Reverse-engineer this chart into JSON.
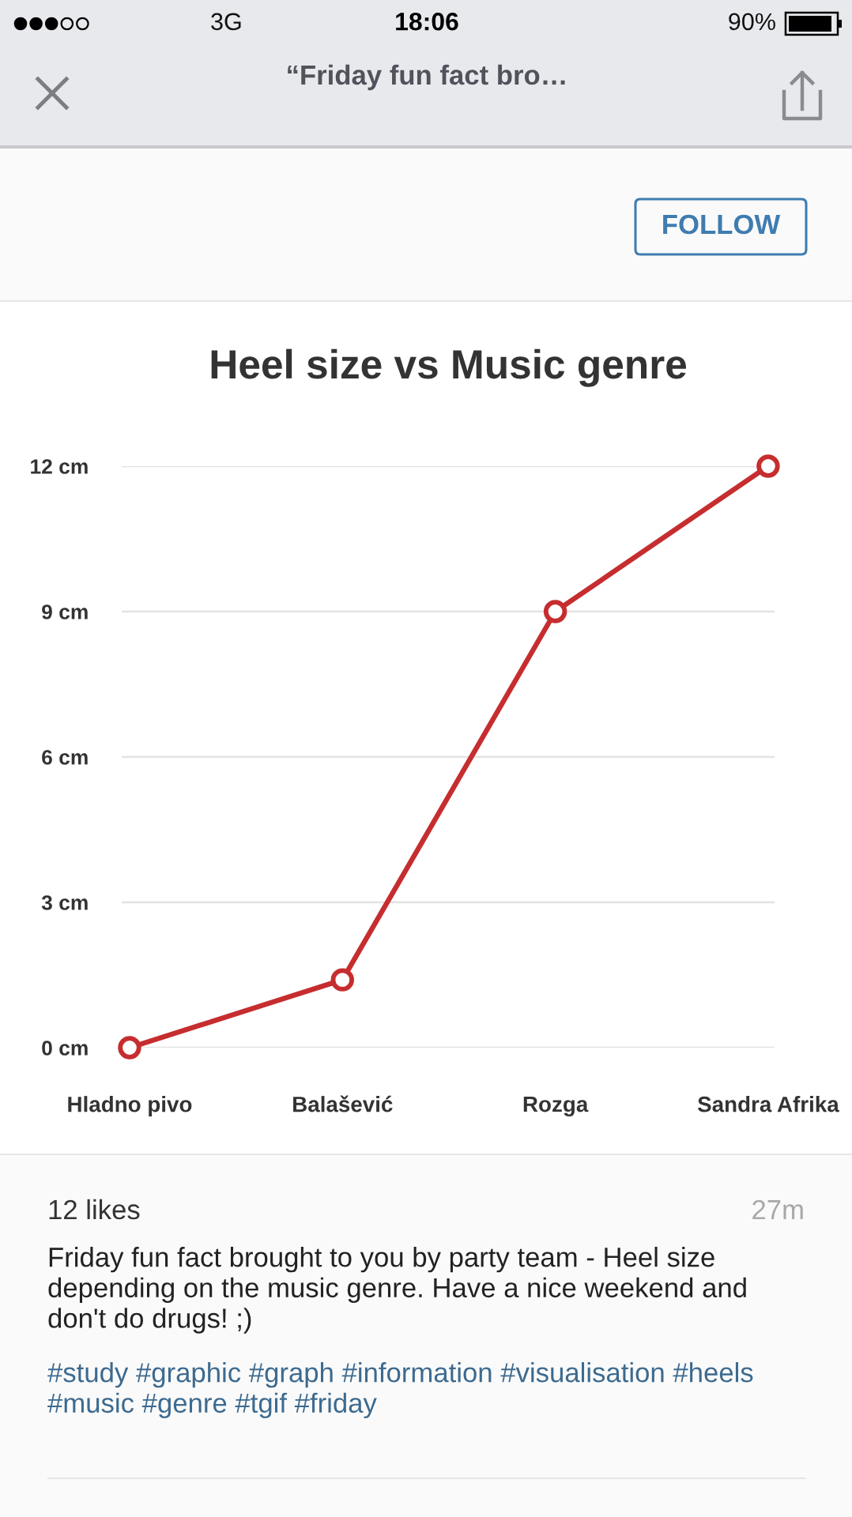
{
  "chart_data": {
    "type": "line",
    "title": "Heel size vs Music genre",
    "categories": [
      "Hladno pivo",
      "Balašević",
      "Rozga",
      "Sandra Afrika"
    ],
    "series": [
      {
        "color": "#c62d2f",
        "values": [
          0,
          1.4,
          9,
          12
        ]
      }
    ],
    "ylim": [
      0,
      12
    ],
    "yticks": [
      {
        "value": 0,
        "label": "0 cm"
      },
      {
        "value": 3,
        "label": "3 cm"
      },
      {
        "value": 6,
        "label": "6 cm"
      },
      {
        "value": 9,
        "label": "9 cm"
      },
      {
        "value": 12,
        "label": "12 cm"
      }
    ],
    "grid": "y",
    "marker": "circle",
    "line_style": "solid",
    "annotations": [
      "3G",
      "18:06",
      "90%",
      "“Friday fun fact bro…",
      "FOLLOW",
      "12 likes",
      "27m",
      "Friday fun fact brought to you by party team - Heel size depending on the music genre. Have a nice weekend and don't do drugs! ;)",
      "#study #graphic #graph #information #visualisation #heels #music #genre #tgif #friday"
    ]
  }
}
